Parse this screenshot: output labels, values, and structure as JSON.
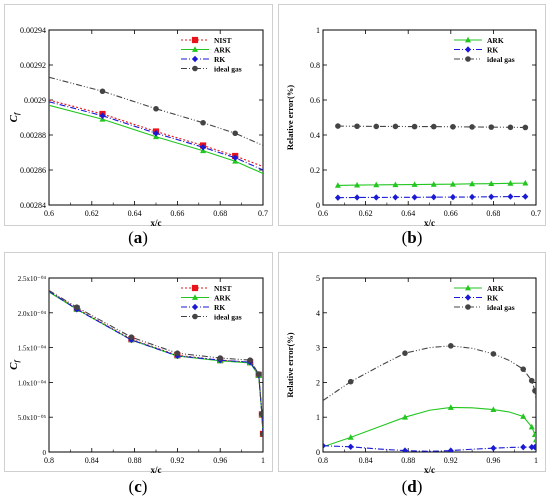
{
  "captions": [
    {
      "open": "(",
      "letter": "a",
      "close": ")"
    },
    {
      "open": "(",
      "letter": "b",
      "close": ")"
    },
    {
      "open": "(",
      "letter": "c",
      "close": ")"
    },
    {
      "open": "(",
      "letter": "d",
      "close": ")"
    }
  ],
  "chart_data": [
    {
      "id": "a",
      "type": "line",
      "title": "",
      "xlabel": "x/c",
      "ylabel": "C_f",
      "xlim": [
        0.6,
        0.7
      ],
      "ylim": [
        0.00284,
        0.00294
      ],
      "xticks": [
        0.6,
        0.62,
        0.64,
        0.66,
        0.68,
        0.7
      ],
      "xtick_labels": [
        "0.6",
        "0.62",
        "0.64",
        "0.66",
        "0.68",
        "0.7"
      ],
      "yticks": [
        0.00284,
        0.00286,
        0.00288,
        0.0029,
        0.00292,
        0.00294
      ],
      "ytick_labels": [
        "0.00284",
        "0.00286",
        "0.00288",
        "0.0029",
        "0.00292",
        "0.00294"
      ],
      "grid": false,
      "legend_position": "top-right",
      "series": [
        {
          "name": "NIST",
          "color": "#e8131b",
          "dash": "2,2",
          "marker": "square",
          "x": [
            0.6,
            0.625,
            0.65,
            0.672,
            0.687,
            0.7
          ],
          "y": [
            0.0029,
            0.002892,
            0.002882,
            0.002874,
            0.002868,
            0.002862
          ],
          "marker_x": [
            0.625,
            0.65,
            0.672,
            0.687
          ]
        },
        {
          "name": "ARK",
          "color": "#22c61f",
          "dash": "",
          "marker": "triangle",
          "x": [
            0.6,
            0.625,
            0.65,
            0.672,
            0.687,
            0.7
          ],
          "y": [
            0.002897,
            0.002889,
            0.002879,
            0.002871,
            0.002865,
            0.002858
          ],
          "marker_x": [
            0.625,
            0.65,
            0.672,
            0.687
          ]
        },
        {
          "name": "RK",
          "color": "#1a1ad4",
          "dash": "6,2,1,2",
          "marker": "diamond",
          "x": [
            0.6,
            0.625,
            0.65,
            0.672,
            0.687,
            0.7
          ],
          "y": [
            0.002899,
            0.002891,
            0.002881,
            0.002873,
            0.002867,
            0.00286
          ],
          "marker_x": [
            0.625,
            0.65,
            0.672,
            0.687
          ]
        },
        {
          "name": "ideal gas",
          "color": "#444444",
          "dash": "6,2,1,2,1,2",
          "marker": "circle",
          "x": [
            0.6,
            0.625,
            0.65,
            0.672,
            0.687,
            0.7
          ],
          "y": [
            0.002913,
            0.002905,
            0.002895,
            0.002887,
            0.002881,
            0.002874
          ],
          "marker_x": [
            0.625,
            0.65,
            0.672,
            0.687
          ]
        }
      ]
    },
    {
      "id": "b",
      "type": "line",
      "title": "",
      "xlabel": "x/c",
      "ylabel": "Relative error(%)",
      "xlim": [
        0.6,
        0.7
      ],
      "ylim": [
        0,
        1
      ],
      "xticks": [
        0.6,
        0.62,
        0.64,
        0.66,
        0.68,
        0.7
      ],
      "xtick_labels": [
        "0.6",
        "0.62",
        "0.64",
        "0.66",
        "0.68",
        "0.7"
      ],
      "yticks": [
        0,
        0.2,
        0.4,
        0.6,
        0.8,
        1
      ],
      "ytick_labels": [
        "0",
        "0.2",
        "0.4",
        "0.6",
        "0.8",
        "1"
      ],
      "grid": false,
      "legend_position": "top-right",
      "series": [
        {
          "name": "ARK",
          "color": "#22c61f",
          "dash": "",
          "marker": "triangle",
          "x": [
            0.607,
            0.616,
            0.625,
            0.634,
            0.643,
            0.652,
            0.661,
            0.67,
            0.679,
            0.688,
            0.695
          ],
          "y": [
            0.112,
            0.114,
            0.115,
            0.116,
            0.117,
            0.118,
            0.119,
            0.121,
            0.122,
            0.124,
            0.125
          ],
          "marker_x": [
            0.607,
            0.616,
            0.625,
            0.634,
            0.643,
            0.652,
            0.661,
            0.67,
            0.679,
            0.688,
            0.695
          ]
        },
        {
          "name": "RK",
          "color": "#1a1ad4",
          "dash": "6,2,1,2",
          "marker": "diamond",
          "x": [
            0.607,
            0.616,
            0.625,
            0.634,
            0.643,
            0.652,
            0.661,
            0.67,
            0.679,
            0.688,
            0.695
          ],
          "y": [
            0.042,
            0.043,
            0.043,
            0.044,
            0.044,
            0.045,
            0.045,
            0.046,
            0.047,
            0.048,
            0.048
          ],
          "marker_x": [
            0.607,
            0.616,
            0.625,
            0.634,
            0.643,
            0.652,
            0.661,
            0.67,
            0.679,
            0.688,
            0.695
          ]
        },
        {
          "name": "ideal gas",
          "color": "#444444",
          "dash": "6,2,1,2,1,2",
          "marker": "circle",
          "x": [
            0.607,
            0.616,
            0.625,
            0.634,
            0.643,
            0.652,
            0.661,
            0.67,
            0.679,
            0.688,
            0.695
          ],
          "y": [
            0.451,
            0.45,
            0.449,
            0.449,
            0.448,
            0.448,
            0.447,
            0.446,
            0.445,
            0.444,
            0.443
          ],
          "marker_x": [
            0.607,
            0.616,
            0.625,
            0.634,
            0.643,
            0.652,
            0.661,
            0.67,
            0.679,
            0.688,
            0.695
          ]
        }
      ]
    },
    {
      "id": "c",
      "type": "line",
      "title": "",
      "xlabel": "x/c",
      "ylabel": "C_f",
      "xlim": [
        0.8,
        1.0
      ],
      "ylim": [
        0,
        0.00025
      ],
      "xticks": [
        0.8,
        0.84,
        0.88,
        0.92,
        0.96,
        1.0
      ],
      "xtick_labels": [
        "0.8",
        "0.84",
        "0.88",
        "0.92",
        "0.96",
        "1"
      ],
      "yticks": [
        0,
        5e-05,
        0.0001,
        0.00015,
        0.0002,
        0.00025
      ],
      "ytick_labels": [
        "0",
        "5.0x10⁻⁰⁵",
        "1.0x10⁻⁰⁴",
        "1.5x10⁻⁰⁴",
        "2.0x10⁻⁰⁴",
        "2.5x10⁻⁰⁴"
      ],
      "grid": false,
      "legend_position": "top-right",
      "series": [
        {
          "name": "NIST",
          "color": "#e8131b",
          "dash": "2,2",
          "marker": "square",
          "x": [
            0.8,
            0.826,
            0.877,
            0.92,
            0.96,
            0.988,
            0.996,
            0.999,
            1.0
          ],
          "y": [
            0.000231,
            0.000206,
            0.000162,
            0.000139,
            0.000132,
            0.000129,
            0.000111,
            5.4e-05,
            2.6e-05
          ],
          "marker_x": [
            0.826,
            0.877,
            0.92,
            0.96,
            0.988,
            0.996,
            0.999,
            1.0
          ]
        },
        {
          "name": "ARK",
          "color": "#22c61f",
          "dash": "",
          "marker": "triangle",
          "x": [
            0.8,
            0.826,
            0.877,
            0.92,
            0.96,
            0.988,
            0.996,
            0.999,
            1.0
          ],
          "y": [
            0.00023,
            0.000205,
            0.000161,
            0.000138,
            0.000131,
            0.000128,
            0.00011,
            5.4e-05,
            2.6e-05
          ],
          "marker_x": [
            0.826,
            0.877,
            0.92,
            0.96,
            0.988,
            0.996,
            0.999,
            1.0
          ]
        },
        {
          "name": "RK",
          "color": "#1a1ad4",
          "dash": "6,2,1,2",
          "marker": "diamond",
          "x": [
            0.8,
            0.826,
            0.877,
            0.92,
            0.96,
            0.988,
            0.996,
            0.999,
            1.0
          ],
          "y": [
            0.000231,
            0.000205,
            0.000161,
            0.000138,
            0.000132,
            0.000129,
            0.000111,
            5.4e-05,
            2.6e-05
          ],
          "marker_x": [
            0.826,
            0.877,
            0.92,
            0.96,
            0.988,
            0.996,
            0.999,
            1.0
          ]
        },
        {
          "name": "ideal gas",
          "color": "#444444",
          "dash": "6,2,1,2,1,2",
          "marker": "circle",
          "x": [
            0.8,
            0.826,
            0.877,
            0.92,
            0.96,
            0.988,
            0.996,
            0.999,
            1.0
          ],
          "y": [
            0.000232,
            0.000208,
            0.000165,
            0.000142,
            0.000135,
            0.000132,
            0.000112,
            5.5e-05,
            2.6e-05
          ],
          "marker_x": [
            0.826,
            0.877,
            0.92,
            0.96,
            0.988,
            0.996,
            0.999,
            1.0
          ]
        }
      ]
    },
    {
      "id": "d",
      "type": "line",
      "title": "",
      "xlabel": "x/c",
      "ylabel": "Relative error(%)",
      "xlim": [
        0.8,
        1.0
      ],
      "ylim": [
        0,
        5
      ],
      "xticks": [
        0.8,
        0.84,
        0.88,
        0.92,
        0.96,
        1.0
      ],
      "xtick_labels": [
        "0.8",
        "0.84",
        "0.88",
        "0.92",
        "0.96",
        "1"
      ],
      "yticks": [
        0,
        1,
        2,
        3,
        4,
        5
      ],
      "ytick_labels": [
        "0",
        "1",
        "2",
        "3",
        "4",
        "5"
      ],
      "grid": false,
      "legend_position": "top-right",
      "series": [
        {
          "name": "ARK",
          "color": "#22c61f",
          "dash": "",
          "marker": "triangle",
          "x": [
            0.8,
            0.826,
            0.855,
            0.877,
            0.9,
            0.92,
            0.94,
            0.96,
            0.975,
            0.988,
            0.996,
            0.999,
            1.0
          ],
          "y": [
            0.15,
            0.42,
            0.75,
            1.0,
            1.2,
            1.28,
            1.27,
            1.22,
            1.15,
            1.02,
            0.72,
            0.5,
            0.35
          ],
          "marker_x": [
            0.826,
            0.877,
            0.92,
            0.96,
            0.988,
            0.996,
            0.999,
            1.0
          ]
        },
        {
          "name": "RK",
          "color": "#1a1ad4",
          "dash": "6,2,1,2",
          "marker": "diamond",
          "x": [
            0.8,
            0.826,
            0.855,
            0.877,
            0.9,
            0.92,
            0.94,
            0.96,
            0.975,
            0.988,
            0.996,
            0.999,
            1.0
          ],
          "y": [
            0.18,
            0.15,
            0.08,
            0.04,
            0.02,
            0.04,
            0.08,
            0.11,
            0.13,
            0.14,
            0.14,
            0.14,
            0.13
          ],
          "marker_x": [
            0.8,
            0.826,
            0.877,
            0.92,
            0.96,
            0.988,
            0.996,
            0.999,
            1.0
          ]
        },
        {
          "name": "ideal gas",
          "color": "#444444",
          "dash": "6,2,1,2,1,2",
          "marker": "circle",
          "x": [
            0.8,
            0.826,
            0.855,
            0.877,
            0.9,
            0.92,
            0.94,
            0.96,
            0.975,
            0.988,
            0.996,
            0.999,
            1.0
          ],
          "y": [
            1.48,
            2.02,
            2.5,
            2.84,
            3.0,
            3.05,
            2.98,
            2.82,
            2.63,
            2.38,
            2.05,
            1.76,
            1.45
          ],
          "marker_x": [
            0.826,
            0.877,
            0.92,
            0.96,
            0.988,
            0.996,
            0.999
          ]
        }
      ]
    }
  ]
}
